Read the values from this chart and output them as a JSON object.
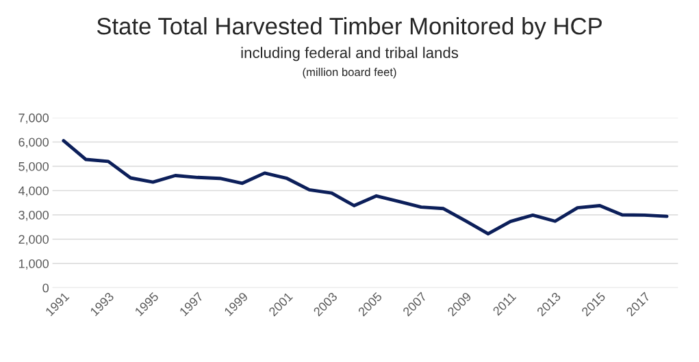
{
  "chart_data": {
    "type": "line",
    "title": "State Total Harvested Timber Monitored by HCP",
    "subtitle": "including federal and tribal lands",
    "annotations": [
      "(million board feet)"
    ],
    "categories": [
      "1991",
      null,
      "1993",
      null,
      "1995",
      null,
      "1997",
      null,
      "1999",
      null,
      "2001",
      null,
      "2003",
      null,
      "2005",
      null,
      "2007",
      null,
      "2009",
      null,
      "2011",
      null,
      "2013",
      null,
      "2015",
      null,
      "2017",
      null
    ],
    "series": [
      {
        "color": "#0c1f5a",
        "values": [
          6050,
          5280,
          5200,
          4520,
          4350,
          4620,
          4540,
          4500,
          4300,
          4720,
          4500,
          4030,
          3900,
          3380,
          3780,
          3550,
          3320,
          3260,
          2750,
          2220,
          2730,
          2990,
          2740,
          3290,
          3380,
          3000,
          2990,
          2940
        ]
      }
    ],
    "ylim": [
      0,
      7000
    ],
    "yticks": [
      {
        "value": 0,
        "label": "0"
      },
      {
        "value": 1000,
        "label": "1,000"
      },
      {
        "value": 2000,
        "label": "2,000"
      },
      {
        "value": 3000,
        "label": "3,000"
      },
      {
        "value": 4000,
        "label": "4,000"
      },
      {
        "value": 5000,
        "label": "5,000"
      },
      {
        "value": 6000,
        "label": "6,000"
      },
      {
        "value": 7000,
        "label": "7,000"
      }
    ],
    "grid": "y",
    "marker": "none",
    "line_style": "solid"
  }
}
